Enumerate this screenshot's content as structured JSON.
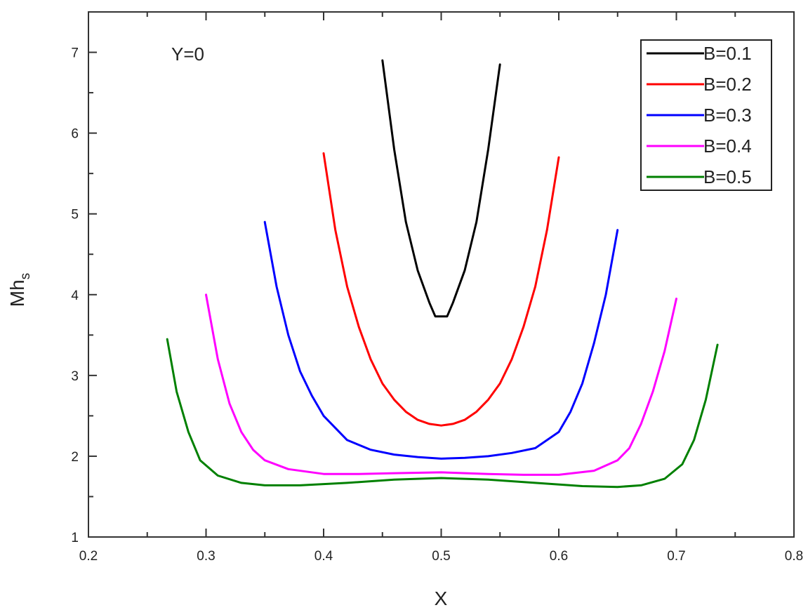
{
  "chart_data": {
    "type": "line",
    "title": "",
    "xlabel": "X",
    "ylabel": "Mh",
    "ylabel_subscript": "s",
    "annotation": "Y=0",
    "xlim": [
      0.2,
      0.8
    ],
    "ylim": [
      1,
      7.5
    ],
    "xticks": [
      0.2,
      0.3,
      0.4,
      0.5,
      0.6,
      0.7,
      0.8
    ],
    "xtick_labels": [
      "0.2",
      "0.3",
      "0.4",
      "0.5",
      "0.6",
      "0.7",
      "0.8"
    ],
    "yticks": [
      1,
      2,
      3,
      4,
      5,
      6,
      7
    ],
    "ytick_labels": [
      "1",
      "2",
      "3",
      "4",
      "5",
      "6",
      "7"
    ],
    "grid": false,
    "legend_position": "top-right",
    "series": [
      {
        "name": "B=0.1",
        "color": "#000000",
        "x": [
          0.45,
          0.46,
          0.47,
          0.48,
          0.49,
          0.495,
          0.505,
          0.51,
          0.52,
          0.53,
          0.54,
          0.55
        ],
        "y": [
          6.9,
          5.8,
          4.9,
          4.3,
          3.9,
          3.73,
          3.73,
          3.9,
          4.3,
          4.9,
          5.8,
          6.85
        ]
      },
      {
        "name": "B=0.2",
        "color": "#ff0000",
        "x": [
          0.4,
          0.41,
          0.42,
          0.43,
          0.44,
          0.45,
          0.46,
          0.47,
          0.48,
          0.49,
          0.5,
          0.51,
          0.52,
          0.53,
          0.54,
          0.55,
          0.56,
          0.57,
          0.58,
          0.59,
          0.6
        ],
        "y": [
          5.75,
          4.8,
          4.1,
          3.6,
          3.2,
          2.9,
          2.7,
          2.55,
          2.45,
          2.4,
          2.38,
          2.4,
          2.45,
          2.55,
          2.7,
          2.9,
          3.2,
          3.6,
          4.1,
          4.8,
          5.7
        ]
      },
      {
        "name": "B=0.3",
        "color": "#0000ff",
        "x": [
          0.35,
          0.36,
          0.37,
          0.38,
          0.39,
          0.4,
          0.42,
          0.44,
          0.46,
          0.48,
          0.5,
          0.52,
          0.54,
          0.56,
          0.58,
          0.6,
          0.61,
          0.62,
          0.63,
          0.64,
          0.65
        ],
        "y": [
          4.9,
          4.1,
          3.5,
          3.05,
          2.75,
          2.5,
          2.2,
          2.08,
          2.02,
          1.99,
          1.97,
          1.98,
          2.0,
          2.04,
          2.1,
          2.3,
          2.55,
          2.9,
          3.4,
          4.0,
          4.8
        ]
      },
      {
        "name": "B=0.4",
        "color": "#ff00ff",
        "x": [
          0.3,
          0.31,
          0.32,
          0.33,
          0.34,
          0.35,
          0.37,
          0.4,
          0.43,
          0.46,
          0.5,
          0.54,
          0.57,
          0.6,
          0.63,
          0.65,
          0.66,
          0.67,
          0.68,
          0.69,
          0.7
        ],
        "y": [
          4.0,
          3.2,
          2.65,
          2.3,
          2.08,
          1.95,
          1.84,
          1.78,
          1.78,
          1.79,
          1.8,
          1.78,
          1.77,
          1.77,
          1.82,
          1.95,
          2.1,
          2.4,
          2.8,
          3.3,
          3.95
        ]
      },
      {
        "name": "B=0.5",
        "color": "#008000",
        "x": [
          0.267,
          0.275,
          0.285,
          0.295,
          0.31,
          0.33,
          0.35,
          0.38,
          0.42,
          0.46,
          0.5,
          0.54,
          0.58,
          0.62,
          0.65,
          0.67,
          0.69,
          0.705,
          0.715,
          0.725,
          0.735
        ],
        "y": [
          3.45,
          2.8,
          2.3,
          1.95,
          1.76,
          1.67,
          1.64,
          1.64,
          1.67,
          1.71,
          1.73,
          1.71,
          1.67,
          1.63,
          1.62,
          1.64,
          1.72,
          1.9,
          2.2,
          2.7,
          3.38
        ]
      }
    ]
  }
}
